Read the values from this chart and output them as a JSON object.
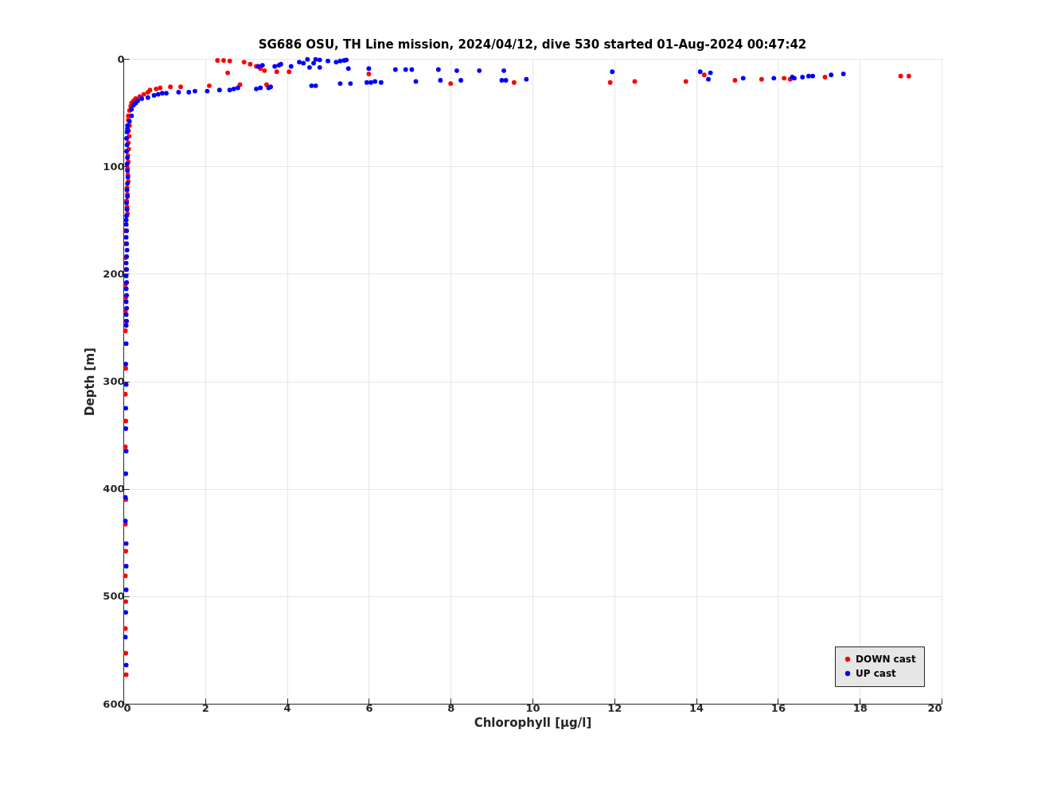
{
  "chart_data": {
    "type": "scatter",
    "title": "SG686 OSU, TH Line mission, 2024/04/12, dive 530 started 01-Aug-2024 00:47:42",
    "xlabel": "Chlorophyll [μg/l]",
    "ylabel": "Depth [m]",
    "xlim": [
      0,
      20
    ],
    "xticks": [
      0,
      2,
      4,
      6,
      8,
      10,
      12,
      14,
      16,
      18,
      20
    ],
    "ylim": [
      600,
      0
    ],
    "yticks": [
      0,
      100,
      200,
      300,
      400,
      500,
      600
    ],
    "grid": true,
    "legend": "bottom right",
    "marker": "circle",
    "series": [
      {
        "name": "DOWN cast",
        "color": "#ff0000",
        "x": [
          2.3,
          2.45,
          2.6,
          2.95,
          3.1,
          3.25,
          3.35,
          3.45,
          3.75,
          4.05,
          6.0,
          2.55,
          9.55,
          8.0,
          11.9,
          12.5,
          13.75,
          14.2,
          14.95,
          15.6,
          16.15,
          16.3,
          17.15,
          19.0,
          19.2,
          3.5,
          2.85,
          2.1,
          1.4,
          1.15,
          0.9,
          0.8,
          0.65,
          0.6,
          0.5,
          0.4,
          0.3,
          0.25,
          0.2,
          0.18,
          0.15,
          0.12,
          0.12,
          0.15,
          0.13,
          0.14,
          0.12,
          0.13,
          0.11,
          0.12,
          0.1,
          0.11,
          0.12,
          0.09,
          0.1,
          0.08,
          0.09,
          0.1,
          0.05,
          0.06,
          0.05,
          0.06,
          0.05,
          0.06,
          0.05,
          0.06,
          0.05,
          0.06,
          0.05,
          0.06,
          0.05,
          0.06,
          0.05,
          0.06,
          0.05,
          0.06,
          0.05,
          0.06,
          0.07
        ],
        "values": [
          1.5,
          1.5,
          2,
          3,
          5,
          7,
          9,
          11,
          12,
          12,
          14,
          13,
          22,
          23,
          22,
          21,
          21,
          15,
          20,
          19,
          18,
          19,
          17,
          16,
          16,
          24,
          24,
          25,
          26,
          26,
          27,
          28,
          29,
          31,
          33,
          35,
          37,
          39,
          41,
          44,
          48,
          53,
          57,
          62,
          67,
          72,
          78,
          84,
          90,
          96,
          102,
          108,
          114,
          120,
          126,
          132,
          138,
          144,
          160,
          172,
          185,
          196,
          210,
          222,
          235,
          244,
          253,
          288,
          312,
          337,
          361,
          410,
          433,
          458,
          481,
          505,
          530,
          553,
          573
        ]
      },
      {
        "name": "UP cast",
        "color": "#0000ff",
        "x": [
          4.5,
          4.7,
          4.8,
          5.0,
          5.2,
          5.3,
          5.4,
          5.45,
          4.4,
          4.65,
          4.3,
          3.85,
          3.8,
          3.7,
          3.4,
          3.3,
          4.1,
          4.55,
          4.8,
          5.5,
          6.0,
          6.65,
          6.9,
          7.05,
          7.7,
          8.15,
          8.7,
          9.3,
          11.95,
          14.1,
          14.35,
          14.3,
          15.15,
          15.9,
          16.35,
          16.4,
          16.6,
          16.75,
          16.85,
          17.3,
          17.6,
          9.85,
          9.25,
          9.35,
          8.25,
          7.75,
          7.15,
          6.3,
          6.15,
          6.05,
          5.95,
          5.55,
          5.3,
          4.6,
          4.7,
          3.6,
          3.55,
          3.35,
          3.25,
          2.8,
          2.7,
          2.6,
          2.35,
          2.05,
          1.75,
          1.6,
          1.35,
          1.05,
          0.95,
          0.85,
          0.75,
          0.6,
          0.45,
          0.35,
          0.3,
          0.25,
          0.2,
          0.2,
          0.15,
          0.1,
          0.1,
          0.09,
          0.08,
          0.09,
          0.08,
          0.1,
          0.09,
          0.1,
          0.11,
          0.1,
          0.09,
          0.1,
          0.08,
          0.09,
          0.08,
          0.07,
          0.07,
          0.08,
          0.07,
          0.08,
          0.09,
          0.08,
          0.07,
          0.08,
          0.07,
          0.08,
          0.07,
          0.08,
          0.07,
          0.08,
          0.07,
          0.08,
          0.07,
          0.07,
          0.06,
          0.07,
          0.06,
          0.06,
          0.07,
          0.06,
          0.05,
          0.05,
          0.07,
          0.07,
          0.07,
          0.06,
          0.05,
          0.07
        ],
        "values": [
          0.5,
          0.5,
          1,
          2,
          3,
          2,
          1.5,
          1,
          4,
          4,
          3,
          5,
          6,
          7,
          6,
          7,
          7,
          8,
          8,
          9,
          9,
          10,
          10,
          10,
          10,
          11,
          11,
          11,
          12,
          12,
          13,
          19,
          18,
          18,
          17,
          18,
          17,
          16,
          16,
          15,
          14,
          19,
          20,
          20,
          20,
          20,
          21,
          22,
          21,
          22,
          22,
          23,
          23,
          25,
          25,
          26,
          27,
          27,
          28,
          27,
          28,
          29,
          29,
          30,
          30,
          31,
          31,
          32,
          32,
          33,
          34,
          36,
          37,
          39,
          41,
          43,
          47,
          53,
          58,
          65,
          62,
          68,
          74,
          80,
          86,
          92,
          98,
          104,
          110,
          116,
          122,
          128,
          134,
          140,
          146,
          150,
          154,
          160,
          166,
          172,
          178,
          184,
          190,
          196,
          202,
          208,
          214,
          220,
          226,
          232,
          238,
          244,
          248,
          265,
          284,
          303,
          325,
          344,
          365,
          386,
          408,
          430,
          451,
          472,
          494,
          515,
          538,
          564
        ]
      }
    ]
  }
}
